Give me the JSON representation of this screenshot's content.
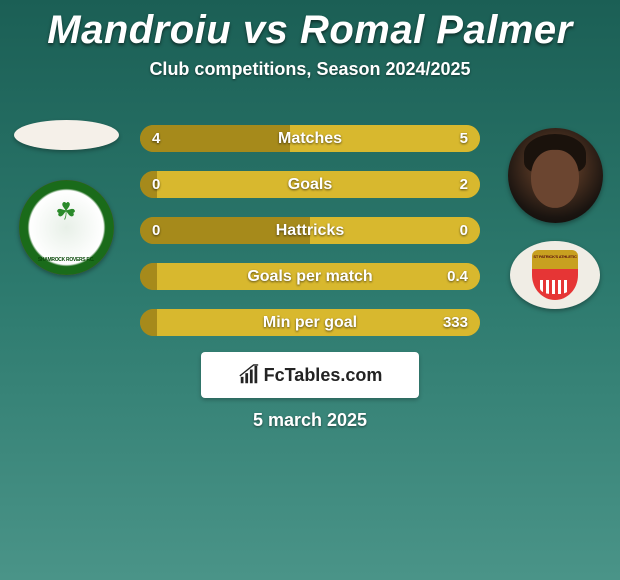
{
  "title": "Mandroiu vs Romal Palmer",
  "subtitle": "Club competitions, Season 2024/2025",
  "date": "5 march 2025",
  "branding": "FcTables.com",
  "colors": {
    "bar_left": "#a68a1b",
    "bar_right": "#d8b82e",
    "row_bg_fallback": "#a68a1b"
  },
  "players": {
    "left": {
      "name": "Mandroiu",
      "club": "Shamrock Rovers"
    },
    "right": {
      "name": "Romal Palmer",
      "club": "St Patrick's Athletic"
    }
  },
  "stats": [
    {
      "label": "Matches",
      "left_text": "4",
      "right_text": "5",
      "left_pct": 44,
      "right_pct": 56
    },
    {
      "label": "Goals",
      "left_text": "0",
      "right_text": "2",
      "left_pct": 5,
      "right_pct": 95
    },
    {
      "label": "Hattricks",
      "left_text": "0",
      "right_text": "0",
      "left_pct": 50,
      "right_pct": 50
    },
    {
      "label": "Goals per match",
      "left_text": "",
      "right_text": "0.4",
      "left_pct": 5,
      "right_pct": 95
    },
    {
      "label": "Min per goal",
      "left_text": "",
      "right_text": "333",
      "left_pct": 5,
      "right_pct": 95
    }
  ]
}
